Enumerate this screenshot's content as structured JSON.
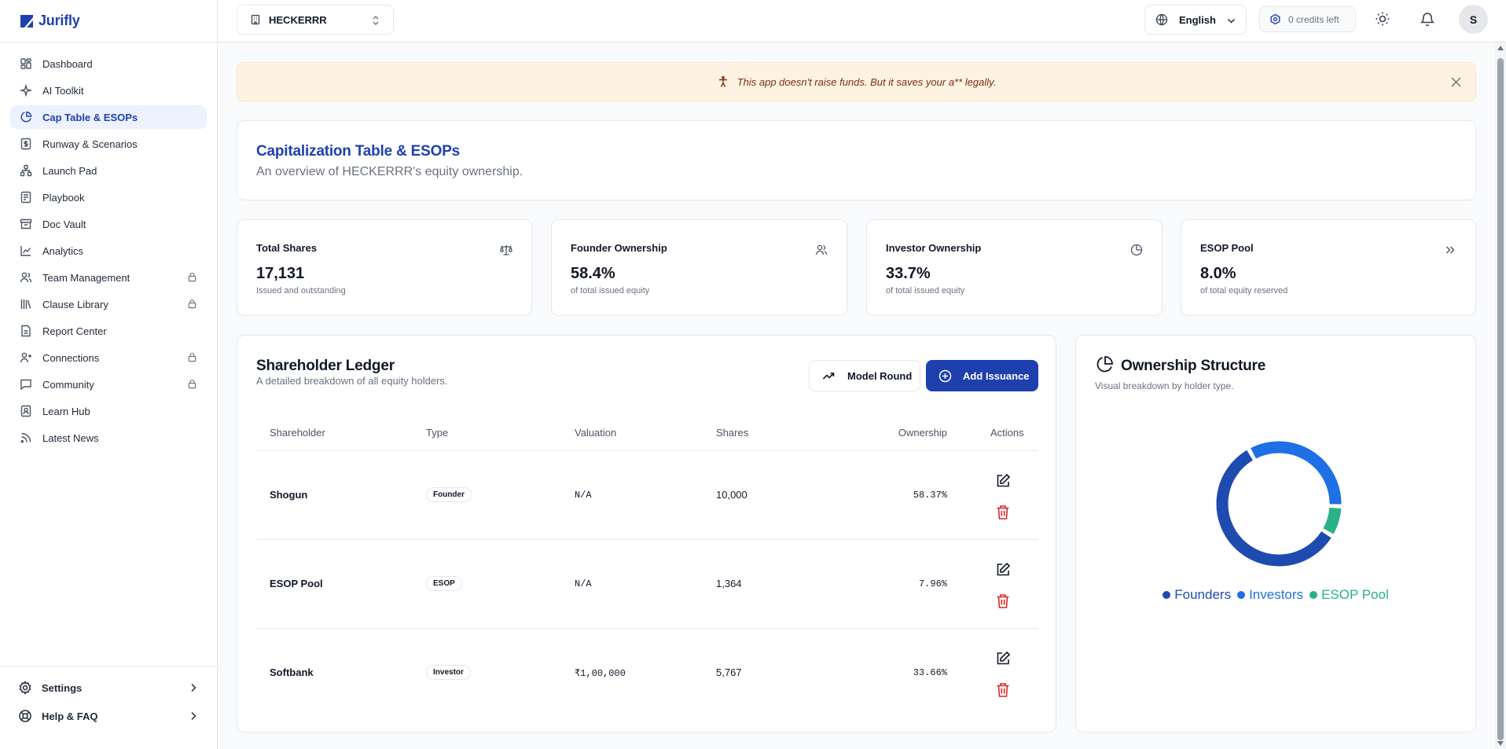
{
  "app": {
    "name": "Jurifly"
  },
  "sidebar": {
    "items": [
      {
        "label": "Dashboard",
        "icon": "dashboard-icon",
        "locked": false
      },
      {
        "label": "AI Toolkit",
        "icon": "sparkles-icon",
        "locked": false
      },
      {
        "label": "Cap Table & ESOPs",
        "icon": "pie-chart-icon",
        "locked": false,
        "active": true
      },
      {
        "label": "Runway & Scenarios",
        "icon": "dollar-icon",
        "locked": false
      },
      {
        "label": "Launch Pad",
        "icon": "network-icon",
        "locked": false
      },
      {
        "label": "Playbook",
        "icon": "book-icon",
        "locked": false
      },
      {
        "label": "Doc Vault",
        "icon": "archive-icon",
        "locked": false
      },
      {
        "label": "Analytics",
        "icon": "line-chart-icon",
        "locked": false
      },
      {
        "label": "Team Management",
        "icon": "users-icon",
        "locked": true
      },
      {
        "label": "Clause Library",
        "icon": "library-icon",
        "locked": true
      },
      {
        "label": "Report Center",
        "icon": "report-icon",
        "locked": false
      },
      {
        "label": "Connections",
        "icon": "connections-icon",
        "locked": true
      },
      {
        "label": "Community",
        "icon": "chat-icon",
        "locked": true
      },
      {
        "label": "Learn Hub",
        "icon": "learn-icon",
        "locked": false
      },
      {
        "label": "Latest News",
        "icon": "rss-icon",
        "locked": false
      }
    ],
    "bottom": [
      {
        "label": "Settings",
        "icon": "gear-icon"
      },
      {
        "label": "Help & FAQ",
        "icon": "lifebuoy-icon"
      }
    ]
  },
  "topbar": {
    "company": "HECKERRR",
    "language": "English",
    "credits": "0 credits left",
    "avatar_initial": "S"
  },
  "banner": {
    "text": "This app doesn't raise funds. But it saves your a** legally."
  },
  "header": {
    "title": "Capitalization Table & ESOPs",
    "subtitle": "An overview of HECKERRR's equity ownership."
  },
  "stats": [
    {
      "label": "Total Shares",
      "value": "17,131",
      "note": "Issued and outstanding",
      "icon": "scale-icon"
    },
    {
      "label": "Founder Ownership",
      "value": "58.4%",
      "note": "of total issued equity",
      "icon": "users-icon"
    },
    {
      "label": "Investor Ownership",
      "value": "33.7%",
      "note": "of total issued equity",
      "icon": "pie-chart-icon"
    },
    {
      "label": "ESOP Pool",
      "value": "8.0%",
      "note": "of total equity reserved",
      "icon": "chevrons-right-icon"
    }
  ],
  "ledger": {
    "title": "Shareholder Ledger",
    "subtitle": "A detailed breakdown of all equity holders.",
    "model_round_label": "Model Round",
    "add_issuance_label": "Add Issuance",
    "columns": [
      "Shareholder",
      "Type",
      "Valuation",
      "Shares",
      "Ownership",
      "Actions"
    ],
    "rows": [
      {
        "shareholder": "Shogun",
        "type": "Founder",
        "valuation": "N/A",
        "shares": "10,000",
        "ownership": "58.37%"
      },
      {
        "shareholder": "ESOP Pool",
        "type": "ESOP",
        "valuation": "N/A",
        "shares": "1,364",
        "ownership": "7.96%"
      },
      {
        "shareholder": "Softbank",
        "type": "Investor",
        "valuation": "₹1,00,000",
        "shares": "5,767",
        "ownership": "33.66%"
      }
    ]
  },
  "ownership": {
    "title": "Ownership Structure",
    "subtitle": "Visual breakdown by holder type.",
    "chart_data": {
      "type": "pie",
      "donut": true,
      "categories": [
        "Founders",
        "Investors",
        "ESOP Pool"
      ],
      "values": [
        58.37,
        33.66,
        7.96
      ],
      "colors": [
        "#1e4bb0",
        "#1f6fe5",
        "#2bb088"
      ],
      "legend": "bottom"
    }
  }
}
